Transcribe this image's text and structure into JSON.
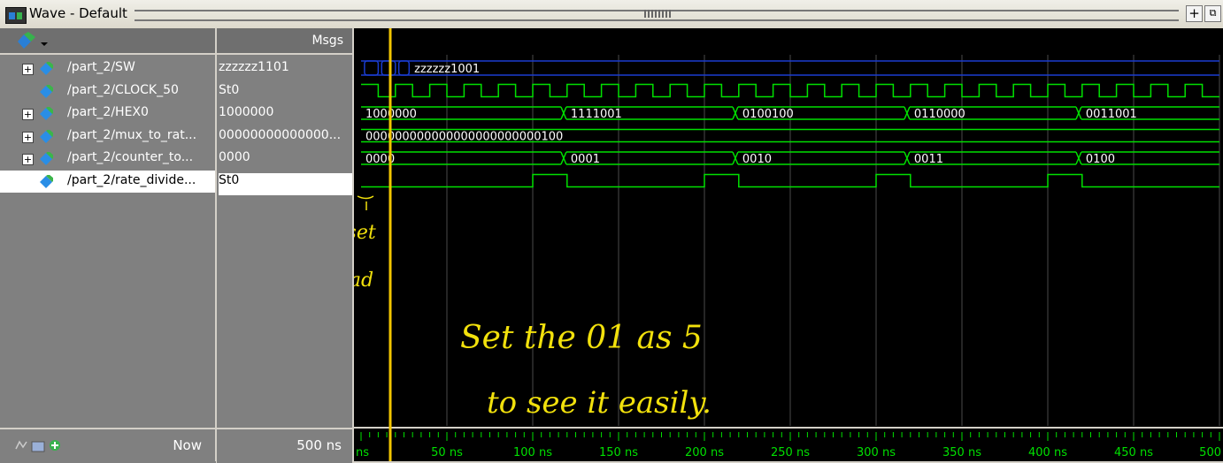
{
  "window": {
    "title": "Wave - Default"
  },
  "header": {
    "msgs_label": "Msgs"
  },
  "signals": [
    {
      "name": "/part_2/SW",
      "value": "zzzzzz1101",
      "expandable": true
    },
    {
      "name": "/part_2/CLOCK_50",
      "value": "St0",
      "expandable": false
    },
    {
      "name": "/part_2/HEX0",
      "value": "1000000",
      "expandable": true
    },
    {
      "name": "/part_2/mux_to_rat...",
      "value": "00000000000000...",
      "expandable": true
    },
    {
      "name": "/part_2/counter_to...",
      "value": "0000",
      "expandable": true
    },
    {
      "name": "/part_2/rate_divide...",
      "value": "St0",
      "expandable": false,
      "selected": true
    }
  ],
  "waves": {
    "sw_label": "zzzzzz1001",
    "hex0": [
      "1000000",
      "1111001",
      "0100100",
      "0110000",
      "0011001"
    ],
    "mux": "000000000000000000000000100",
    "counter": [
      "0000",
      "0001",
      "0010",
      "0011",
      "0100"
    ]
  },
  "footer": {
    "now_label": "Now",
    "now_value": "500 ns"
  },
  "timeline": {
    "ticks": [
      "ns",
      "50 ns",
      "100 ns",
      "150 ns",
      "200 ns",
      "250 ns",
      "300 ns",
      "350 ns",
      "400 ns",
      "450 ns",
      "500"
    ]
  },
  "annotations": {
    "reset": "reset",
    "load": "& load",
    "line1": "Set  the   01  as  5",
    "line2": "to  see  it  easily."
  },
  "colors": {
    "wave_green": "#00e000",
    "cursor": "#f2c500",
    "grid": "#4a4a4a",
    "sw_blue": "#1a3ccf",
    "ink": "#f2e10c"
  }
}
